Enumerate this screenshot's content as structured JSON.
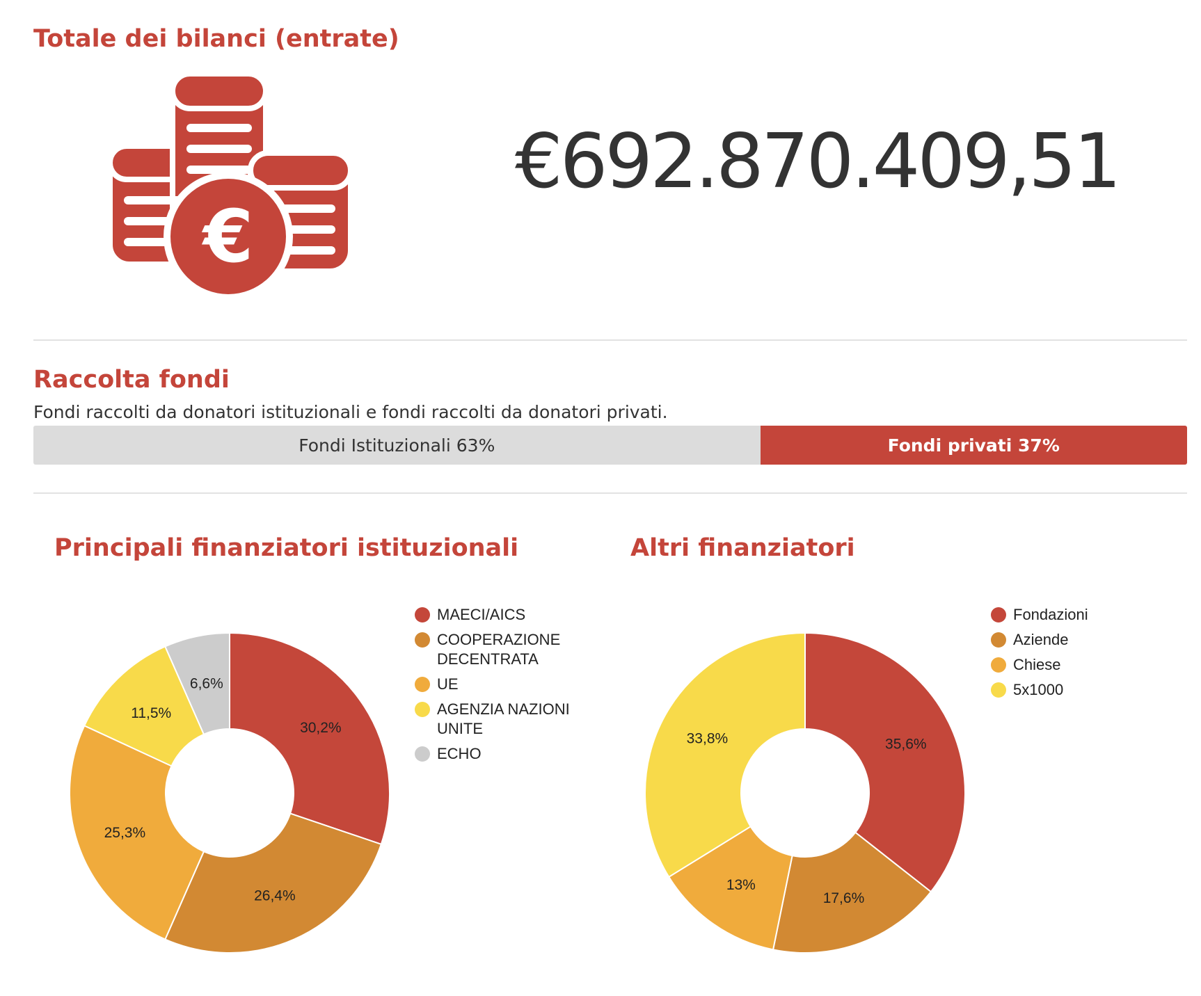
{
  "total_section": {
    "title": "Totale dei bilanci (entrate)",
    "icon": "euro-coins-icon",
    "amount": "€692.870.409,51"
  },
  "fundraising": {
    "title": "Raccolta fondi",
    "subtitle": "Fondi raccolti da donatori istituzionali e fondi raccolti da donatori privati.",
    "bar": [
      {
        "label": "Fondi Istituzionali 63%",
        "value": 63,
        "color": "#dcdcdc"
      },
      {
        "label": "Fondi privati 37%",
        "value": 37,
        "color": "#c4453a"
      }
    ]
  },
  "colors": {
    "accent": "#c4453a",
    "text": "#333333",
    "divider": "#e2e2e2"
  },
  "chart_data": [
    {
      "type": "pie",
      "title": "Principali finanziatori istituzionali",
      "categories": [
        "MAECI/AICS",
        "COOPERAZIONE DECENTRATA",
        "UE",
        "AGENZIA NAZIONI UNITE",
        "ECHO"
      ],
      "values": [
        30.2,
        26.4,
        25.3,
        11.5,
        6.6
      ],
      "labels": [
        "30,2%",
        "26,4%",
        "25,3%",
        "11,5%",
        "6,6%"
      ],
      "colors": [
        "#c4473a",
        "#d28933",
        "#f0ab3c",
        "#f8da4a",
        "#cccccc"
      ],
      "legend": "right"
    },
    {
      "type": "pie",
      "title": "Altri finanziatori",
      "categories": [
        "Fondazioni",
        "Aziende",
        "Chiese",
        "5x1000"
      ],
      "values": [
        35.6,
        17.6,
        13,
        33.8
      ],
      "labels": [
        "35,6%",
        "17,6%",
        "13%",
        "33,8%"
      ],
      "colors": [
        "#c4473a",
        "#d28933",
        "#f0ab3c",
        "#f8da4a"
      ],
      "legend": "right"
    }
  ]
}
